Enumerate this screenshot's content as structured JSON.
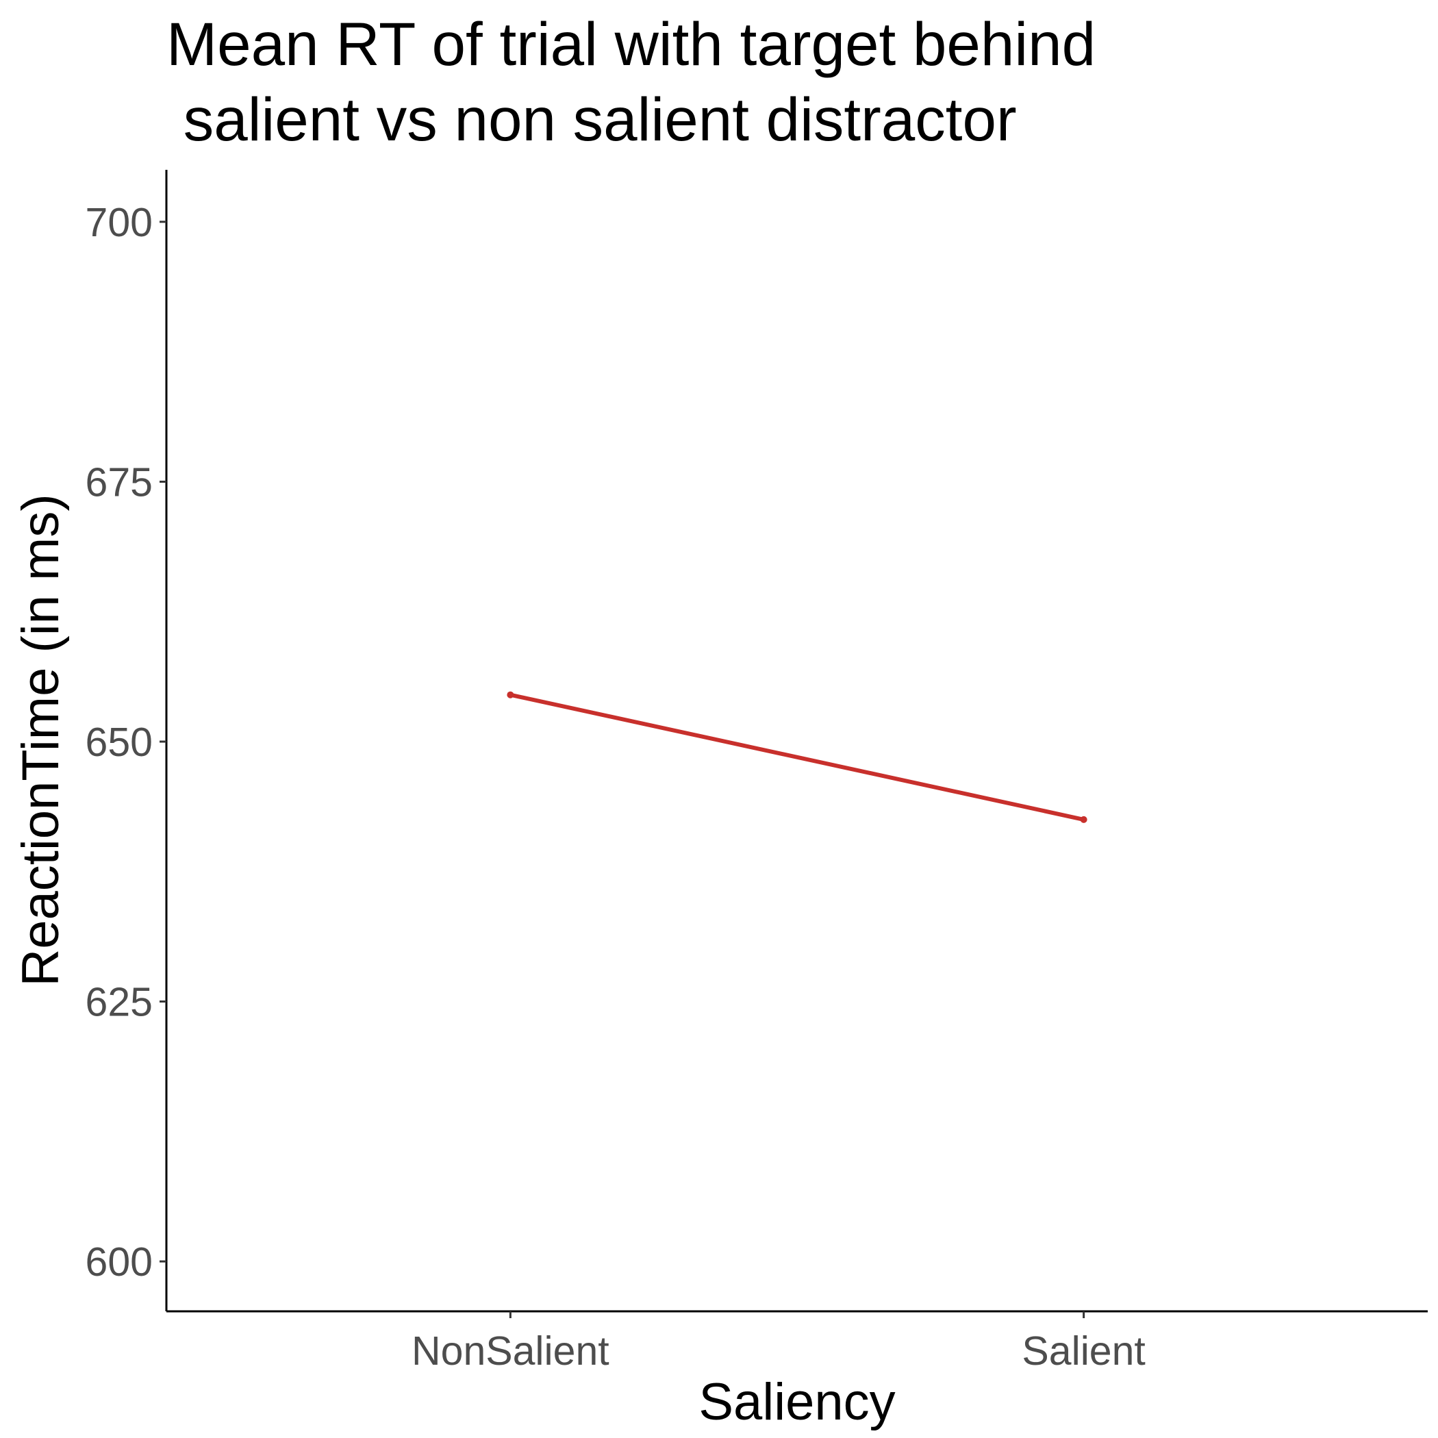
{
  "chart_data": {
    "type": "line",
    "title_lines": [
      "Mean RT of trial with target behind",
      " salient vs non salient distractor"
    ],
    "xlabel": "Saliency",
    "ylabel": "ReactionTime (in ms)",
    "categories": [
      "NonSalient",
      "Salient"
    ],
    "series": [
      {
        "values": [
          654.5,
          642.5
        ],
        "color": "#c8302c"
      }
    ],
    "ylim": [
      595.2,
      705
    ],
    "yticks": [
      600,
      625,
      650,
      675,
      700
    ],
    "grid": false,
    "legend": "none"
  }
}
